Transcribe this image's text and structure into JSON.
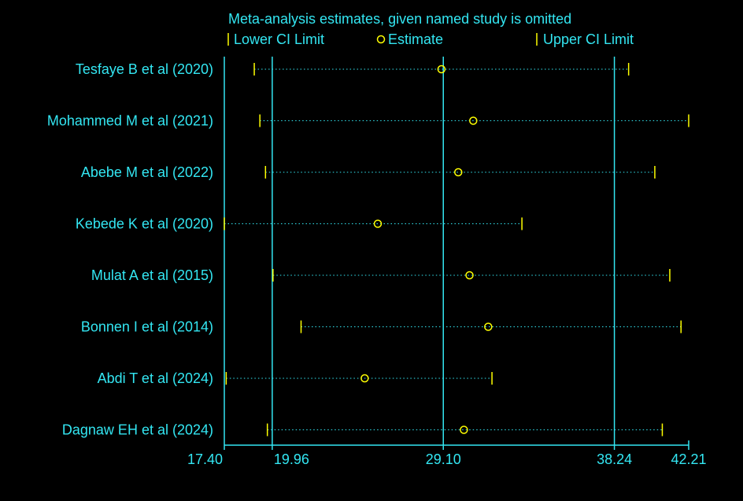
{
  "colors": {
    "background": "#000000",
    "text": "#33e6f2",
    "axis": "#33e6f2",
    "marker": "#ffff00",
    "dotted": "#33e6f2"
  },
  "chart_data": {
    "type": "forest",
    "title": "Meta-analysis estimates, given named study is omitted",
    "legend": {
      "lower": "Lower CI Limit",
      "estimate": "Estimate",
      "upper": "Upper CI Limit",
      "placement": "top"
    },
    "xlim": [
      17.4,
      42.21
    ],
    "xticks": [
      "17.40",
      "19.96",
      "29.10",
      "38.24",
      "42.21"
    ],
    "reference_lines": [
      19.96,
      29.1,
      38.24
    ],
    "studies": [
      {
        "label": "Tesfaye B et al (2020)",
        "lower": 19.0,
        "estimate": 29.0,
        "upper": 39.0
      },
      {
        "label": "Mohammed M et al (2021)",
        "lower": 19.3,
        "estimate": 30.7,
        "upper": 42.21
      },
      {
        "label": "Abebe M et al (2022)",
        "lower": 19.6,
        "estimate": 29.9,
        "upper": 40.4
      },
      {
        "label": "Kebede  K et al (2020)",
        "lower": 17.4,
        "estimate": 25.6,
        "upper": 33.3
      },
      {
        "label": "Mulat A et al (2015)",
        "lower": 20.0,
        "estimate": 30.5,
        "upper": 41.2
      },
      {
        "label": "Bonnen I et al (2014)",
        "lower": 21.5,
        "estimate": 31.5,
        "upper": 41.8
      },
      {
        "label": "Abdi T et al (2024)",
        "lower": 17.5,
        "estimate": 24.9,
        "upper": 31.7
      },
      {
        "label": "Dagnaw EH et al (2024)",
        "lower": 19.7,
        "estimate": 30.2,
        "upper": 40.8
      }
    ]
  }
}
